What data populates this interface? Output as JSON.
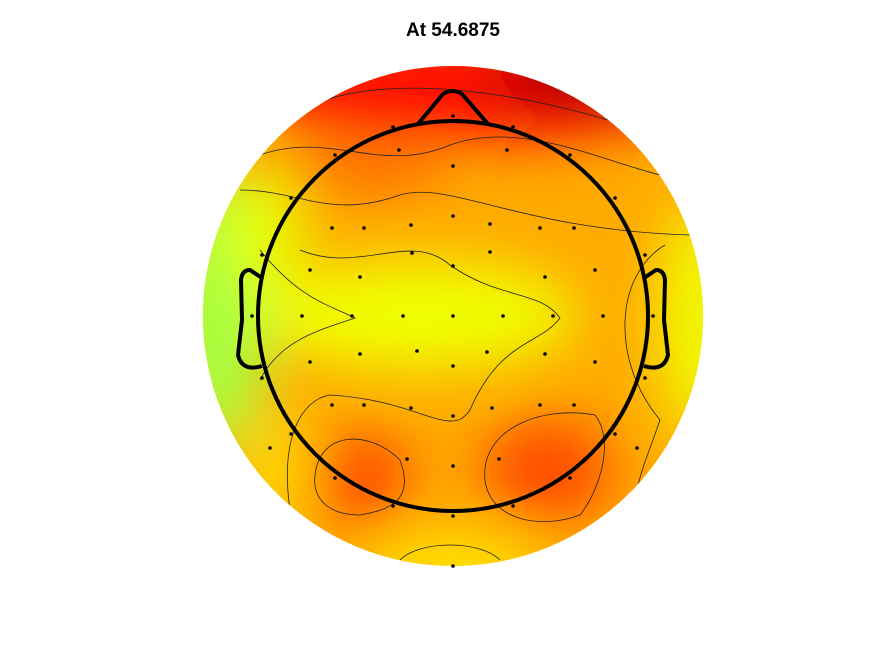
{
  "chart_data": {
    "type": "topoplot",
    "title": "At 54.6875"
  }
}
